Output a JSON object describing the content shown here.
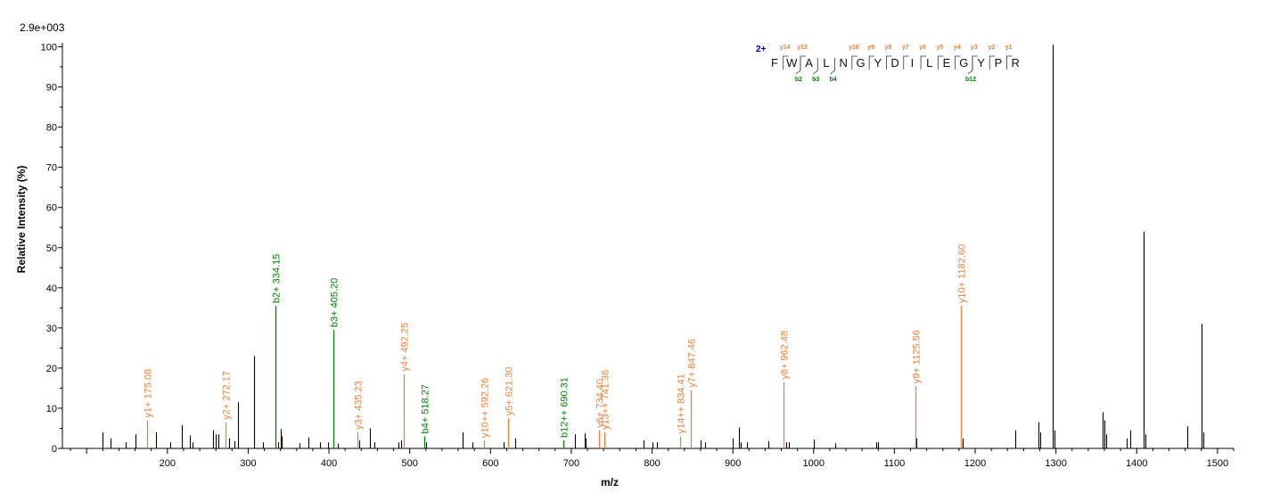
{
  "chart_data": {
    "type": "bar",
    "scale_label": "2.9e+003",
    "xlabel": "m/z",
    "ylabel": "Relative   Intensity (%)",
    "xlim": [
      70,
      1520
    ],
    "ylim": [
      0,
      101
    ],
    "xticks": [
      200,
      300,
      400,
      500,
      600,
      700,
      800,
      900,
      1000,
      1100,
      1200,
      1300,
      1400,
      1500
    ],
    "yticks": [
      0,
      10,
      20,
      30,
      40,
      50,
      60,
      70,
      80,
      90,
      100
    ],
    "colors": {
      "y_ion": "#e8823c",
      "b_ion": "#008000",
      "unassigned": "#000000",
      "charge": "#00008b"
    },
    "peaks": [
      {
        "mz": 120,
        "intensity": 4
      },
      {
        "mz": 130,
        "intensity": 2.5
      },
      {
        "mz": 148,
        "intensity": 1.5
      },
      {
        "mz": 160,
        "intensity": 3.5
      },
      {
        "mz": 175.08,
        "intensity": 7,
        "label": "y1+ 175.08",
        "ion": "y"
      },
      {
        "mz": 186,
        "intensity": 4
      },
      {
        "mz": 204,
        "intensity": 1.5
      },
      {
        "mz": 218,
        "intensity": 5.8
      },
      {
        "mz": 228,
        "intensity": 3.2
      },
      {
        "mz": 231,
        "intensity": 1.5
      },
      {
        "mz": 257,
        "intensity": 4.5
      },
      {
        "mz": 260,
        "intensity": 3.5
      },
      {
        "mz": 263,
        "intensity": 3.5
      },
      {
        "mz": 272.17,
        "intensity": 6.5,
        "label": "y2+ 272.17",
        "ion": "y"
      },
      {
        "mz": 276,
        "intensity": 2.5
      },
      {
        "mz": 283,
        "intensity": 1.8
      },
      {
        "mz": 287,
        "intensity": 11.5
      },
      {
        "mz": 307,
        "intensity": 23
      },
      {
        "mz": 318,
        "intensity": 1.5
      },
      {
        "mz": 334.15,
        "intensity": 35.5,
        "label": "b2+ 334.15",
        "ion": "b"
      },
      {
        "mz": 337,
        "intensity": 1.5
      },
      {
        "mz": 340,
        "intensity": 4.8
      },
      {
        "mz": 342,
        "intensity": 3
      },
      {
        "mz": 363,
        "intensity": 1.3
      },
      {
        "mz": 375,
        "intensity": 2.7
      },
      {
        "mz": 389,
        "intensity": 1.5
      },
      {
        "mz": 399,
        "intensity": 1.5
      },
      {
        "mz": 405.2,
        "intensity": 29.5,
        "label": "b3+ 405.20",
        "ion": "b"
      },
      {
        "mz": 411,
        "intensity": 1.2
      },
      {
        "mz": 435.23,
        "intensity": 4,
        "label": "y3+ 435.23",
        "ion": "y"
      },
      {
        "mz": 437,
        "intensity": 2
      },
      {
        "mz": 451,
        "intensity": 5
      },
      {
        "mz": 456,
        "intensity": 1.5
      },
      {
        "mz": 486,
        "intensity": 1.5
      },
      {
        "mz": 489,
        "intensity": 2
      },
      {
        "mz": 492.25,
        "intensity": 18.5,
        "label": "y4+ 492.25",
        "ion": "y"
      },
      {
        "mz": 518.27,
        "intensity": 3,
        "label": "b4+ 518.27",
        "ion": "b"
      },
      {
        "mz": 520,
        "intensity": 1.5
      },
      {
        "mz": 565,
        "intensity": 4
      },
      {
        "mz": 578,
        "intensity": 1.5
      },
      {
        "mz": 592.26,
        "intensity": 2,
        "label": "y10++ 592.26",
        "ion": "y"
      },
      {
        "mz": 616,
        "intensity": 1.5
      },
      {
        "mz": 621.3,
        "intensity": 7.5,
        "label": "y5+ 621.30",
        "ion": "y"
      },
      {
        "mz": 631,
        "intensity": 2.5
      },
      {
        "mz": 690.31,
        "intensity": 2,
        "label": "b12++ 690.31",
        "ion": "b"
      },
      {
        "mz": 705,
        "intensity": 3.5
      },
      {
        "mz": 717,
        "intensity": 3.8
      },
      {
        "mz": 718,
        "intensity": 2.5
      },
      {
        "mz": 734.4,
        "intensity": 4.5,
        "label": "y6+ 734.40",
        "ion": "y"
      },
      {
        "mz": 741.36,
        "intensity": 4,
        "label": "y13++ 741.36",
        "ion": "y"
      },
      {
        "mz": 790,
        "intensity": 2
      },
      {
        "mz": 800,
        "intensity": 1.5
      },
      {
        "mz": 806,
        "intensity": 1.5
      },
      {
        "mz": 834.41,
        "intensity": 3,
        "label": "y14++ 834.41",
        "ion": "y"
      },
      {
        "mz": 847.46,
        "intensity": 14.5,
        "label": "y7+ 847.46",
        "ion": "y"
      },
      {
        "mz": 860,
        "intensity": 2
      },
      {
        "mz": 866,
        "intensity": 1.5
      },
      {
        "mz": 900,
        "intensity": 2.5
      },
      {
        "mz": 908,
        "intensity": 5.2
      },
      {
        "mz": 910,
        "intensity": 1.5
      },
      {
        "mz": 918,
        "intensity": 1.5
      },
      {
        "mz": 944,
        "intensity": 1.8
      },
      {
        "mz": 962.48,
        "intensity": 16.5,
        "label": "y8+ 962.48",
        "ion": "y"
      },
      {
        "mz": 966,
        "intensity": 1.5
      },
      {
        "mz": 969,
        "intensity": 1.5
      },
      {
        "mz": 1000,
        "intensity": 2.2
      },
      {
        "mz": 1027,
        "intensity": 1.3
      },
      {
        "mz": 1077,
        "intensity": 1.5
      },
      {
        "mz": 1080,
        "intensity": 1.5
      },
      {
        "mz": 1125.56,
        "intensity": 15.5,
        "label": "y9+ 1125.56",
        "ion": "y"
      },
      {
        "mz": 1127,
        "intensity": 2.5
      },
      {
        "mz": 1182.6,
        "intensity": 35.5,
        "label": "y10+ 1182.60",
        "ion": "y"
      },
      {
        "mz": 1185,
        "intensity": 2.5
      },
      {
        "mz": 1250,
        "intensity": 4.5
      },
      {
        "mz": 1278,
        "intensity": 6.5
      },
      {
        "mz": 1280,
        "intensity": 4
      },
      {
        "mz": 1296,
        "intensity": 100.5
      },
      {
        "mz": 1298,
        "intensity": 4.5
      },
      {
        "mz": 1358,
        "intensity": 9
      },
      {
        "mz": 1360,
        "intensity": 7
      },
      {
        "mz": 1362,
        "intensity": 3.5
      },
      {
        "mz": 1388,
        "intensity": 2.5
      },
      {
        "mz": 1392,
        "intensity": 4.5
      },
      {
        "mz": 1409,
        "intensity": 54
      },
      {
        "mz": 1411,
        "intensity": 3.5
      },
      {
        "mz": 1463,
        "intensity": 5.5
      },
      {
        "mz": 1480,
        "intensity": 31
      },
      {
        "mz": 1482,
        "intensity": 4
      }
    ],
    "sequence": {
      "charge": "2+",
      "residues": [
        "F",
        "W",
        "A",
        "L",
        "N",
        "G",
        "Y",
        "D",
        "I",
        "L",
        "E",
        "G",
        "Y",
        "P",
        "R"
      ],
      "y_ions": [
        {
          "after": 1,
          "label": "y14"
        },
        {
          "after": 2,
          "label": "y13"
        },
        {
          "after": 5,
          "label": "y10"
        },
        {
          "after": 6,
          "label": "y9"
        },
        {
          "after": 7,
          "label": "y8"
        },
        {
          "after": 8,
          "label": "y7"
        },
        {
          "after": 9,
          "label": "y6"
        },
        {
          "after": 10,
          "label": "y5"
        },
        {
          "after": 11,
          "label": "y4"
        },
        {
          "after": 12,
          "label": "y3"
        },
        {
          "after": 13,
          "label": "y2"
        },
        {
          "after": 14,
          "label": "y1"
        }
      ],
      "b_ions": [
        {
          "after": 2,
          "label": "b2"
        },
        {
          "after": 3,
          "label": "b3"
        },
        {
          "after": 4,
          "label": "b4"
        },
        {
          "after": 12,
          "label": "b12"
        }
      ]
    }
  }
}
